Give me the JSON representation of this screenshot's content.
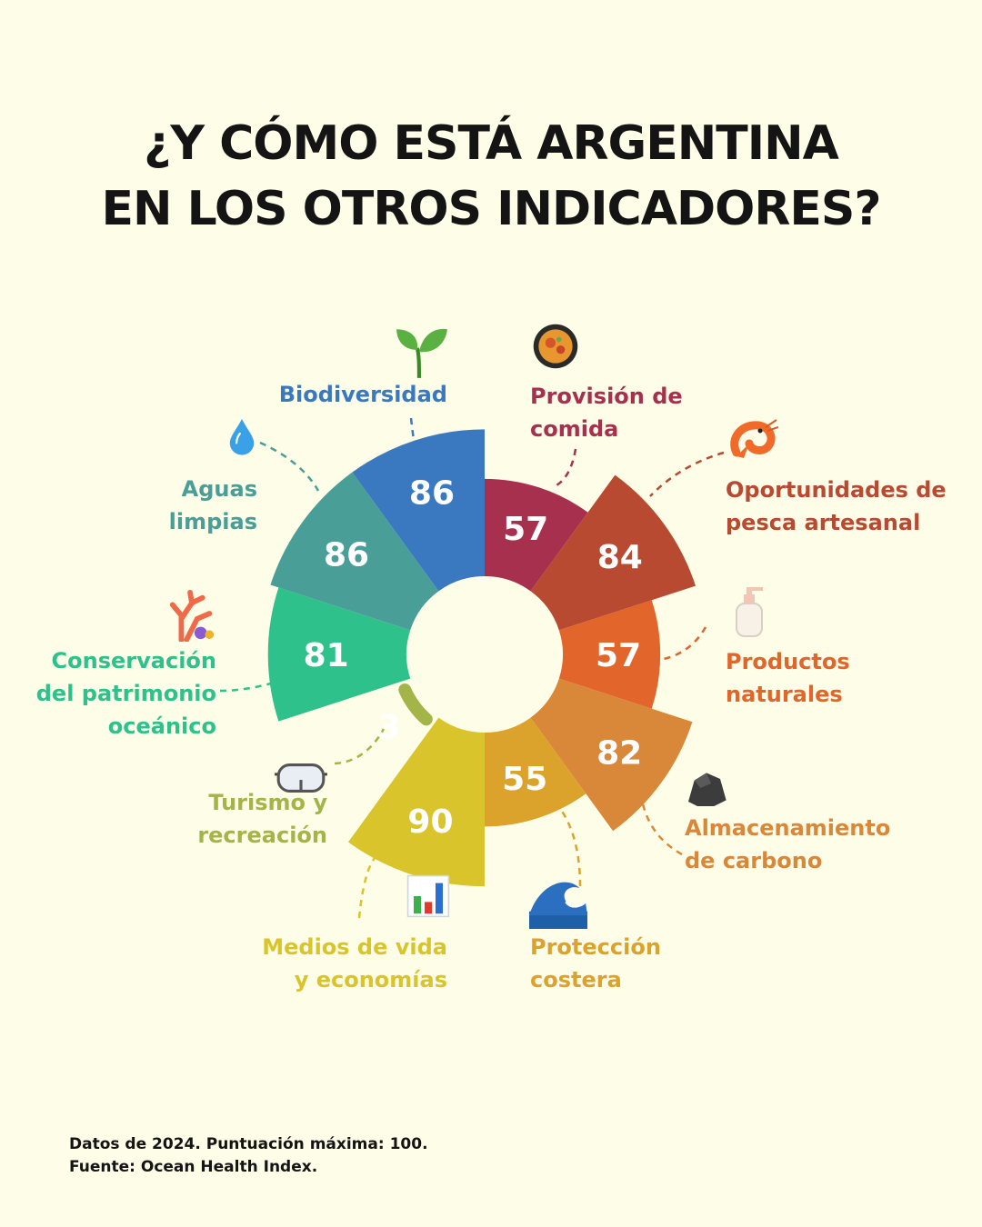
{
  "title_lines": [
    "¿Y CÓMO ESTÁ ARGENTINA",
    "EN LOS OTROS INDICADORES?"
  ],
  "footer": {
    "line1": "Datos de 2024. Puntuación máxima: 100.",
    "line2": "Fuente: Ocean Health Index."
  },
  "chart_data": {
    "type": "polar-bar",
    "max_score": 100,
    "categories": [
      {
        "name_lines": [
          "Provisión de",
          "comida"
        ],
        "value": 57,
        "color": "#a8304f",
        "icon": "paella-pan-icon"
      },
      {
        "name_lines": [
          "Oportunidades de",
          "pesca artesanal"
        ],
        "value": 84,
        "color": "#b84a32",
        "icon": "shrimp-icon"
      },
      {
        "name_lines": [
          "Productos",
          "naturales"
        ],
        "value": 57,
        "color": "#e2652b",
        "icon": "lotion-bottle-icon"
      },
      {
        "name_lines": [
          "Almacenamiento",
          "de carbono"
        ],
        "value": 82,
        "color": "#d9883a",
        "icon": "rock-icon"
      },
      {
        "name_lines": [
          "Protección",
          "costera"
        ],
        "value": 55,
        "color": "#dba32c",
        "icon": "wave-icon"
      },
      {
        "name_lines": [
          "Medios de vida",
          "y economías"
        ],
        "value": 90,
        "color": "#d9c42c",
        "icon": "bar-chart-icon"
      },
      {
        "name_lines": [
          "Turismo y",
          "recreación"
        ],
        "value": 3,
        "color": "#a3b548",
        "icon": "goggles-icon"
      },
      {
        "name_lines": [
          "Conservación",
          "del patrimonio",
          "oceánico"
        ],
        "value": 81,
        "color": "#2ec18c",
        "icon": "coral-icon"
      },
      {
        "name_lines": [
          "Aguas",
          "limpias"
        ],
        "value": 86,
        "color": "#4a9e98",
        "icon": "water-drop-icon"
      },
      {
        "name_lines": [
          "Biodiversidad"
        ],
        "value": 86,
        "color": "#3a78c0",
        "icon": "seedling-icon"
      }
    ]
  }
}
